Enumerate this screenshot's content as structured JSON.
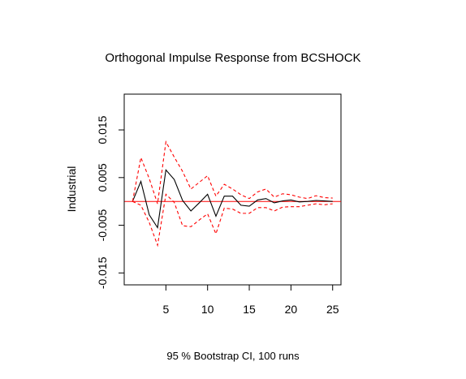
{
  "chart_data": {
    "type": "line",
    "title": "Orthogonal Impulse Response from BCSHOCK",
    "xlabel": "95 % Bootstrap CI,  100 runs",
    "ylabel": "Industrial",
    "xlim": [
      0,
      26
    ],
    "ylim": [
      -0.0175,
      0.0225
    ],
    "xticks": [
      5,
      10,
      15,
      20,
      25
    ],
    "xtick_labels": [
      "5",
      "10",
      "15",
      "20",
      "25"
    ],
    "yticks": [
      -0.015,
      -0.005,
      0.005,
      0.015
    ],
    "ytick_labels": [
      "-0.015",
      "-0.005",
      "0.005",
      "0.015"
    ],
    "zero_line": 0,
    "x": [
      1,
      2,
      3,
      4,
      5,
      6,
      7,
      8,
      9,
      10,
      11,
      12,
      13,
      14,
      15,
      16,
      17,
      18,
      19,
      20,
      21,
      22,
      23,
      24,
      25
    ],
    "series": [
      {
        "role": "impulse-response",
        "color": "#000000",
        "style": "solid",
        "values": [
          0.0,
          0.0042,
          -0.0028,
          -0.0055,
          0.0066,
          0.0046,
          0.0002,
          -0.002,
          -0.0003,
          0.0015,
          -0.0031,
          0.0011,
          0.0011,
          -0.0008,
          -0.001,
          0.0003,
          0.0006,
          -0.0003,
          0.0001,
          0.0003,
          -0.0001,
          0.0,
          0.0002,
          0.0001,
          0.0
        ]
      },
      {
        "role": "upper-bound",
        "color": "#ff0000",
        "style": "dashed",
        "values": [
          0.0,
          0.0092,
          0.0048,
          -0.0005,
          0.0125,
          0.0093,
          0.0063,
          0.0026,
          0.004,
          0.0054,
          0.0011,
          0.0036,
          0.0026,
          0.0014,
          0.0006,
          0.002,
          0.0026,
          0.0009,
          0.0016,
          0.0014,
          0.0009,
          0.0006,
          0.0012,
          0.0008,
          0.0007
        ]
      },
      {
        "role": "lower-bound",
        "color": "#ff0000",
        "style": "dashed",
        "values": [
          0.0,
          -0.0008,
          -0.0044,
          -0.0092,
          0.0015,
          -0.0002,
          -0.0051,
          -0.0053,
          -0.0039,
          -0.0026,
          -0.0068,
          -0.0014,
          -0.0016,
          -0.0025,
          -0.0025,
          -0.0013,
          -0.0013,
          -0.002,
          -0.0012,
          -0.0011,
          -0.0011,
          -0.0008,
          -0.0005,
          -0.0007,
          -0.0005
        ]
      }
    ]
  }
}
